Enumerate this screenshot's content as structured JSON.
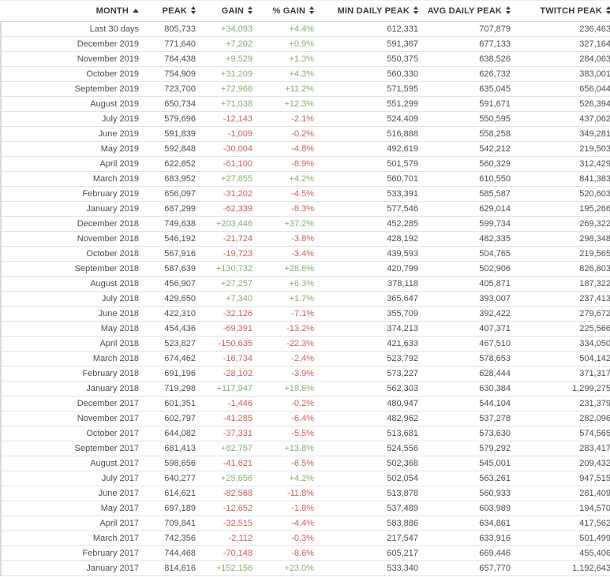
{
  "colors": {
    "positive": "#84b164",
    "negative": "#c9605a",
    "header_text": "#3b3b3b",
    "body_text": "#4e4e4e",
    "row_border": "#e4e4e4"
  },
  "table": {
    "columns": [
      {
        "label": "MONTH",
        "sort": "asc"
      },
      {
        "label": "PEAK",
        "sort": "both"
      },
      {
        "label": "GAIN",
        "sort": "both"
      },
      {
        "label": "% GAIN",
        "sort": "both"
      },
      {
        "label": "MIN DAILY PEAK",
        "sort": "both"
      },
      {
        "label": "AVG DAILY PEAK",
        "sort": "both"
      },
      {
        "label": "TWITCH PEAK",
        "sort": "both"
      }
    ],
    "rows": [
      [
        "Last 30 days",
        "805,733",
        "+34,093",
        "+4.4%",
        "612,331",
        "707,879",
        "236,463"
      ],
      [
        "December 2019",
        "771,640",
        "+7,202",
        "+0.9%",
        "591,367",
        "677,133",
        "327,164"
      ],
      [
        "November 2019",
        "764,438",
        "+9,529",
        "+1.3%",
        "550,375",
        "638,526",
        "284,063"
      ],
      [
        "October 2019",
        "754,909",
        "+31,209",
        "+4.3%",
        "560,330",
        "626,732",
        "383,001"
      ],
      [
        "September 2019",
        "723,700",
        "+72,966",
        "+11.2%",
        "571,595",
        "635,045",
        "656,044"
      ],
      [
        "August 2019",
        "650,734",
        "+71,038",
        "+12.3%",
        "551,299",
        "591,671",
        "526,394"
      ],
      [
        "July 2019",
        "579,696",
        "-12,143",
        "-2.1%",
        "524,409",
        "550,595",
        "437,062"
      ],
      [
        "June 2019",
        "591,839",
        "-1,009",
        "-0.2%",
        "516,888",
        "558,258",
        "349,281"
      ],
      [
        "May 2019",
        "592,848",
        "-30,004",
        "-4.8%",
        "492,619",
        "542,212",
        "219,503"
      ],
      [
        "April 2019",
        "622,852",
        "-61,100",
        "-8.9%",
        "501,579",
        "560,329",
        "312,429"
      ],
      [
        "March 2019",
        "683,952",
        "+27,855",
        "+4.2%",
        "560,701",
        "610,550",
        "841,383"
      ],
      [
        "February 2019",
        "656,097",
        "-31,202",
        "-4.5%",
        "533,391",
        "585,587",
        "520,603"
      ],
      [
        "January 2019",
        "687,299",
        "-62,339",
        "-8.3%",
        "577,546",
        "629,014",
        "195,266"
      ],
      [
        "December 2018",
        "749,638",
        "+203,446",
        "+37.2%",
        "452,285",
        "599,734",
        "269,322"
      ],
      [
        "November 2018",
        "546,192",
        "-21,724",
        "-3.8%",
        "428,192",
        "482,335",
        "298,348"
      ],
      [
        "October 2018",
        "567,916",
        "-19,723",
        "-3.4%",
        "439,593",
        "504,765",
        "219,565"
      ],
      [
        "September 2018",
        "587,639",
        "+130,732",
        "+28.6%",
        "420,799",
        "502,906",
        "826,803"
      ],
      [
        "August 2018",
        "456,907",
        "+27,257",
        "+6.3%",
        "378,118",
        "405,871",
        "187,322"
      ],
      [
        "July 2018",
        "429,650",
        "+7,340",
        "+1.7%",
        "365,647",
        "393,007",
        "237,413"
      ],
      [
        "June 2018",
        "422,310",
        "-32,126",
        "-7.1%",
        "355,709",
        "392,422",
        "279,672"
      ],
      [
        "May 2018",
        "454,436",
        "-69,391",
        "-13.2%",
        "374,213",
        "407,371",
        "225,566"
      ],
      [
        "April 2018",
        "523,827",
        "-150,635",
        "-22.3%",
        "421,633",
        "467,510",
        "334,050"
      ],
      [
        "March 2018",
        "674,462",
        "-16,734",
        "-2.4%",
        "523,792",
        "578,653",
        "504,142"
      ],
      [
        "February 2018",
        "691,196",
        "-28,102",
        "-3.9%",
        "573,227",
        "628,444",
        "371,317"
      ],
      [
        "January 2018",
        "719,298",
        "+117,947",
        "+19.6%",
        "562,303",
        "630,384",
        "1,299,275"
      ],
      [
        "December 2017",
        "601,351",
        "-1,446",
        "-0.2%",
        "480,947",
        "544,104",
        "231,379"
      ],
      [
        "November 2017",
        "602,797",
        "-41,285",
        "-6.4%",
        "482,962",
        "537,278",
        "282,096"
      ],
      [
        "October 2017",
        "644,082",
        "-37,331",
        "-5.5%",
        "513,681",
        "573,630",
        "574,565"
      ],
      [
        "September 2017",
        "681,413",
        "+82,757",
        "+13.8%",
        "524,556",
        "579,292",
        "283,417"
      ],
      [
        "August 2017",
        "598,656",
        "-41,621",
        "-6.5%",
        "502,368",
        "545,001",
        "209,432"
      ],
      [
        "July 2017",
        "640,277",
        "+25,656",
        "+4.2%",
        "502,054",
        "563,261",
        "947,515"
      ],
      [
        "June 2017",
        "614,621",
        "-82,568",
        "-11.8%",
        "513,878",
        "560,933",
        "281,409"
      ],
      [
        "May 2017",
        "697,189",
        "-12,652",
        "-1.8%",
        "537,489",
        "603,989",
        "194,570"
      ],
      [
        "April 2017",
        "709,841",
        "-32,515",
        "-4.4%",
        "583,886",
        "634,861",
        "417,562"
      ],
      [
        "March 2017",
        "742,356",
        "-2,112",
        "-0.3%",
        "217,547",
        "633,916",
        "501,499"
      ],
      [
        "February 2017",
        "744,468",
        "-70,148",
        "-8.6%",
        "605,217",
        "669,446",
        "455,406"
      ],
      [
        "January 2017",
        "814,616",
        "+152,156",
        "+23.0%",
        "533,340",
        "657,770",
        "1,192,643"
      ]
    ]
  }
}
